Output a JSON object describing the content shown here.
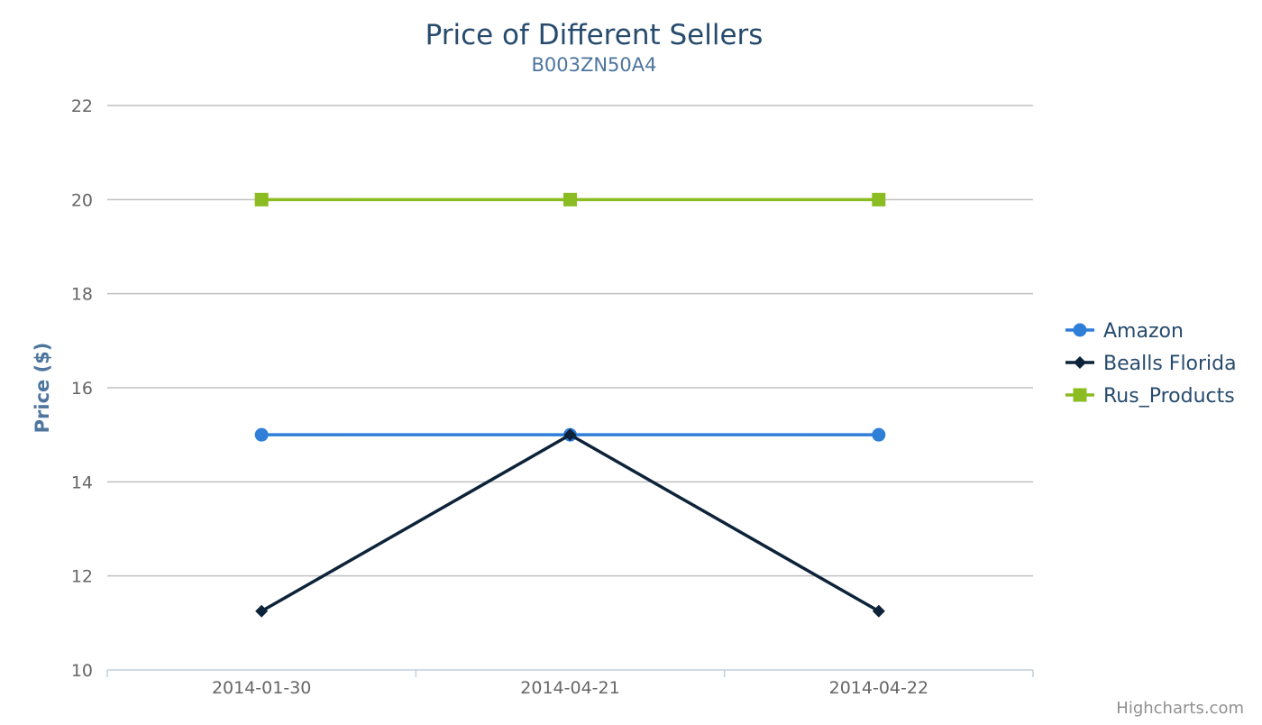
{
  "chart_data": {
    "type": "line",
    "title": "Price of Different Sellers",
    "subtitle": "B003ZN50A4",
    "xlabel": "",
    "ylabel": "Price ($)",
    "categories": [
      "2014-01-30",
      "2014-04-21",
      "2014-04-22"
    ],
    "ylim": [
      10,
      22
    ],
    "yticks": [
      10,
      12,
      14,
      16,
      18,
      20,
      22
    ],
    "grid": true,
    "legend_position": "right",
    "series": [
      {
        "name": "Amazon",
        "values": [
          15,
          15,
          15
        ],
        "color": "#2f7ed8",
        "marker": "circle"
      },
      {
        "name": "Bealls Florida",
        "values": [
          11.25,
          15,
          11.25
        ],
        "color": "#0d233a",
        "marker": "diamond"
      },
      {
        "name": "Rus_Products",
        "values": [
          20,
          20,
          20
        ],
        "color": "#8bbc21",
        "marker": "square"
      }
    ],
    "credits": "Highcharts.com"
  },
  "colors": {
    "title": "#274b6d",
    "subtitle": "#4d759e",
    "axis_title": "#4d759e",
    "tick_label": "#666666",
    "grid": "#c0c0c0",
    "axis_line": "#c0d0e0",
    "legend_text": "#274b6d",
    "credits": "#909090"
  }
}
